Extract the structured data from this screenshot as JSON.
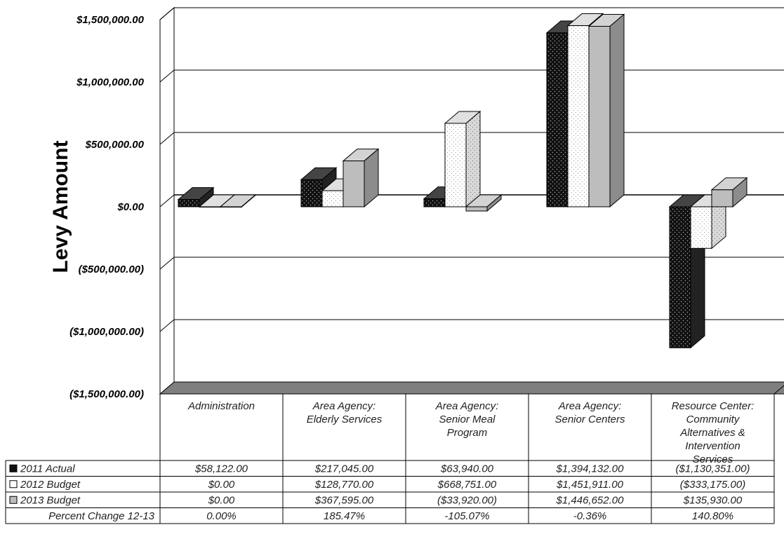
{
  "chart_data": {
    "type": "bar",
    "ylabel": "Levy Amount",
    "ylim": [
      -1500000,
      1500000
    ],
    "yticks": [
      1500000,
      1000000,
      500000,
      0,
      -500000,
      -1000000,
      -1500000
    ],
    "ytick_labels": [
      "$1,500,000.00",
      "$1,000,000.00",
      "$500,000.00",
      "$0.00",
      "($500,000.00)",
      "($1,000,000.00)",
      "($1,500,000.00)"
    ],
    "categories": [
      [
        "Administration"
      ],
      [
        "Area Agency:",
        "Elderly Services"
      ],
      [
        "Area Agency:",
        "Senior Meal",
        "Program"
      ],
      [
        "Area Agency:",
        "Senior Centers"
      ],
      [
        "Resource Center:",
        "Community",
        "Alternatives &",
        "Intervention",
        "Services"
      ]
    ],
    "series": [
      {
        "name": "2011 Actual",
        "color": "#111111",
        "pattern": "dark-dots",
        "values": [
          58122,
          217045,
          63940,
          1394132,
          -1130351
        ],
        "labels": [
          "$58,122.00",
          "$217,045.00",
          "$63,940.00",
          "$1,394,132.00",
          "($1,130,351.00)"
        ]
      },
      {
        "name": "2012 Budget",
        "color": "#ffffff",
        "pattern": "light-dots",
        "values": [
          0,
          128770,
          668751,
          1451911,
          -333175
        ],
        "labels": [
          "$0.00",
          "$128,770.00",
          "$668,751.00",
          "$1,451,911.00",
          "($333,175.00)"
        ]
      },
      {
        "name": "2013 Budget",
        "color": "#bdbdbd",
        "pattern": "solid",
        "values": [
          0,
          367595,
          -33920,
          1446652,
          135930
        ],
        "labels": [
          "$0.00",
          "$367,595.00",
          "($33,920.00)",
          "$1,446,652.00",
          "$135,930.00"
        ]
      }
    ],
    "extra_row": {
      "name": "Percent Change 12-13",
      "labels": [
        "0.00%",
        "185.47%",
        "-105.07%",
        "-0.36%",
        "140.80%"
      ]
    },
    "grid": true,
    "legend": "data-table-left"
  }
}
